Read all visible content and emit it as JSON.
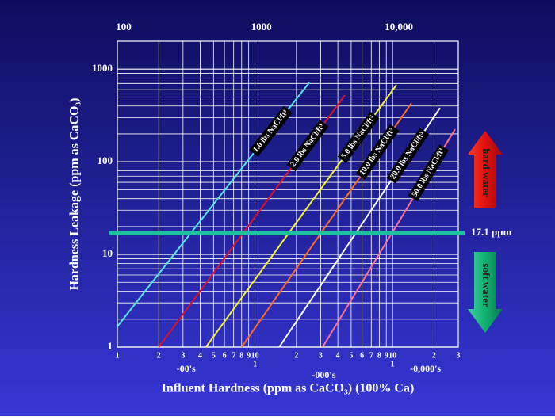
{
  "chart_data": {
    "type": "line",
    "xlabel": "Influent Hardness (ppm as CaCO₃) (100% Ca)",
    "ylabel": "Hardness Leakage (ppm as CaCO₃)",
    "xlog": true,
    "ylog": true,
    "grid": true,
    "xlim": [
      100,
      30000
    ],
    "ylim": [
      1,
      2000
    ],
    "xticks_top": [
      100,
      1000,
      {
        "value": 10000,
        "label": "10,000"
      }
    ],
    "xticks": [
      {
        "value": 100,
        "label": "1"
      },
      {
        "value": 200,
        "label": "2"
      },
      {
        "value": 300,
        "label": "3"
      },
      {
        "value": 400,
        "label": "4"
      },
      {
        "value": 500,
        "label": "5"
      },
      {
        "value": 600,
        "label": "6"
      },
      {
        "value": 700,
        "label": "7"
      },
      {
        "value": 800,
        "label": "8"
      },
      {
        "value": 900,
        "label": "9"
      },
      {
        "value": 1000,
        "label": "10"
      },
      {
        "value": 2000,
        "label": "2"
      },
      {
        "value": 3000,
        "label": "3"
      },
      {
        "value": 4000,
        "label": "4"
      },
      {
        "value": 5000,
        "label": "5"
      },
      {
        "value": 6000,
        "label": "6"
      },
      {
        "value": 7000,
        "label": "7"
      },
      {
        "value": 8000,
        "label": "8"
      },
      {
        "value": 9000,
        "label": "9"
      },
      {
        "value": 10000,
        "label": "10"
      },
      {
        "value": 20000,
        "label": "2"
      },
      {
        "value": 30000,
        "label": "3"
      }
    ],
    "xticks_decade_start": [
      {
        "value": 1000,
        "label": "1"
      },
      {
        "value": 10000,
        "label": "1"
      }
    ],
    "x_unit_labels": [
      "-00's",
      "-000's",
      "-0,000's"
    ],
    "yticks": [
      1,
      10,
      100,
      1000
    ],
    "yminorticks": [
      2,
      3,
      4,
      5,
      6,
      7,
      8,
      9,
      20,
      30,
      40,
      50,
      60,
      70,
      80,
      90,
      200,
      300,
      400,
      500,
      600,
      700,
      800,
      900,
      2000
    ],
    "series": [
      {
        "name": "1.0 lbs NaCl/ft³",
        "color": "#55e8f0",
        "x": [
          100,
          2480
        ],
        "values": [
          1.67,
          716
        ]
      },
      {
        "name": "2.0 lbs NaCl/ft³",
        "color": "#e0102a",
        "x": [
          200,
          4500
        ],
        "values": [
          1,
          522
        ]
      },
      {
        "name": "5.0 lbs NaCl/ft³",
        "color": "#f5f530",
        "x": [
          440,
          10660
        ],
        "values": [
          1,
          675
        ]
      },
      {
        "name": "10.0 lbs NaCl/ft³",
        "color": "#ff6a20",
        "x": [
          800,
          13700
        ],
        "values": [
          1,
          429
        ]
      },
      {
        "name": "20.0 lbs NaCl/ft³",
        "color": "#ffffff",
        "x": [
          1500,
          22100
        ],
        "values": [
          1,
          381
        ]
      },
      {
        "name": "50.0 lbs NaCl/ft³",
        "color": "#ff7090",
        "x": [
          3100,
          28400
        ],
        "values": [
          1,
          224
        ]
      }
    ],
    "hline": {
      "value": 17.1,
      "label": "17.1 ppm",
      "color": "#1fc0a0"
    },
    "annotations": [
      "hard water",
      "soft water"
    ]
  }
}
